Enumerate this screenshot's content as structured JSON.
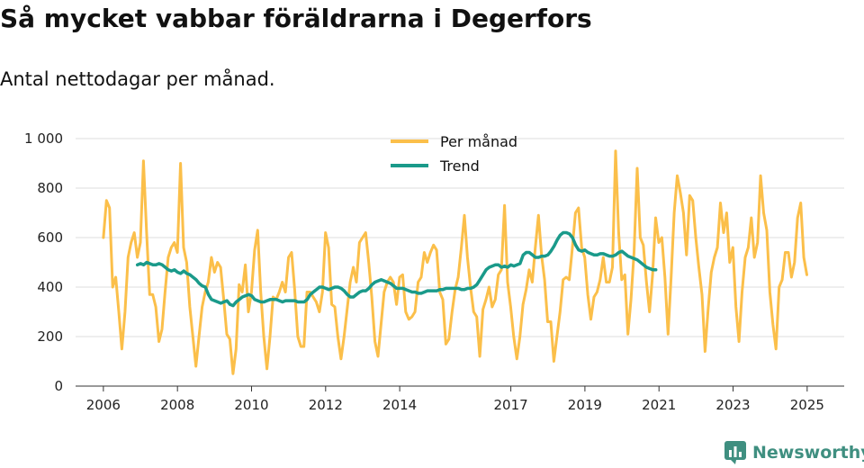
{
  "chart_data": {
    "type": "line",
    "title": "Så mycket vabbar föräldrarna i Degerfors",
    "subtitle": "Antal nettodagar per månad.",
    "xlabel": "",
    "ylabel": "",
    "ylim": [
      0,
      1000
    ],
    "xlim": [
      2005.25,
      2026.0
    ],
    "y_ticks": [
      0,
      200,
      400,
      600,
      800,
      1000
    ],
    "y_tick_labels": [
      "0",
      "200",
      "400",
      "600",
      "800",
      "1 000"
    ],
    "x_ticks": [
      2006,
      2008,
      2010,
      2012,
      2014,
      2017,
      2019,
      2021,
      2023,
      2025
    ],
    "x_tick_labels": [
      "2006",
      "2008",
      "2010",
      "2012",
      "2014",
      "2017",
      "2019",
      "2021",
      "2023",
      "2025"
    ],
    "grid": true,
    "legend_position": "top-center",
    "series": [
      {
        "name": "Per månad",
        "color": "#fbbf4a",
        "start": 2006.0,
        "step": 0.0833,
        "values": [
          600,
          750,
          720,
          400,
          440,
          300,
          150,
          300,
          520,
          580,
          620,
          520,
          580,
          910,
          620,
          370,
          370,
          320,
          180,
          230,
          380,
          520,
          560,
          580,
          540,
          900,
          560,
          500,
          320,
          200,
          80,
          200,
          320,
          380,
          420,
          520,
          460,
          500,
          480,
          350,
          210,
          190,
          50,
          150,
          410,
          380,
          490,
          300,
          380,
          550,
          630,
          380,
          200,
          70,
          200,
          360,
          350,
          380,
          420,
          380,
          520,
          540,
          390,
          200,
          160,
          160,
          380,
          380,
          360,
          340,
          300,
          380,
          620,
          560,
          330,
          320,
          200,
          110,
          200,
          310,
          420,
          480,
          420,
          580,
          600,
          620,
          500,
          360,
          180,
          120,
          250,
          380,
          420,
          440,
          420,
          330,
          440,
          450,
          300,
          270,
          280,
          300,
          420,
          440,
          540,
          500,
          540,
          570,
          550,
          380,
          350,
          170,
          190,
          300,
          390,
          440,
          560,
          690,
          520,
          400,
          300,
          280,
          120,
          310,
          350,
          400,
          320,
          350,
          450,
          470,
          730,
          420,
          320,
          200,
          110,
          200,
          330,
          390,
          470,
          420,
          560,
          690,
          530,
          430,
          260,
          260,
          100,
          200,
          300,
          430,
          440,
          430,
          560,
          700,
          720,
          560,
          520,
          370,
          270,
          360,
          380,
          430,
          520,
          420,
          420,
          480,
          950,
          620,
          430,
          450,
          210,
          350,
          540,
          880,
          600,
          570,
          420,
          300,
          450,
          680,
          580,
          600,
          440,
          210,
          440,
          700,
          850,
          780,
          700,
          530,
          770,
          750,
          600,
          480,
          370,
          140,
          310,
          460,
          520,
          560,
          740,
          620,
          700,
          500,
          560,
          320,
          180,
          380,
          520,
          560,
          680,
          520,
          580,
          850,
          700,
          630,
          380,
          250,
          150,
          400,
          430,
          540,
          540,
          440,
          500,
          680,
          740,
          520,
          450
        ]
      },
      {
        "name": "Trend",
        "color": "#1a9a8a",
        "start": 2006.92,
        "step": 0.0833,
        "values": [
          490,
          495,
          490,
          500,
          495,
          490,
          490,
          495,
          490,
          480,
          470,
          465,
          470,
          460,
          455,
          465,
          455,
          450,
          440,
          430,
          415,
          405,
          400,
          370,
          350,
          345,
          340,
          335,
          340,
          345,
          330,
          325,
          340,
          350,
          360,
          365,
          370,
          365,
          350,
          345,
          340,
          340,
          345,
          350,
          350,
          350,
          345,
          340,
          345,
          345,
          345,
          345,
          340,
          340,
          340,
          350,
          370,
          380,
          390,
          400,
          400,
          395,
          390,
          395,
          400,
          400,
          395,
          385,
          370,
          360,
          360,
          370,
          380,
          385,
          385,
          395,
          410,
          420,
          425,
          430,
          425,
          420,
          415,
          405,
          395,
          395,
          395,
          390,
          385,
          380,
          380,
          375,
          375,
          380,
          385,
          385,
          385,
          385,
          390,
          390,
          395,
          395,
          395,
          395,
          395,
          390,
          390,
          395,
          395,
          400,
          410,
          430,
          450,
          470,
          480,
          485,
          490,
          490,
          480,
          485,
          480,
          490,
          485,
          490,
          495,
          530,
          540,
          540,
          530,
          520,
          520,
          525,
          525,
          530,
          545,
          565,
          590,
          610,
          620,
          620,
          615,
          600,
          570,
          550,
          545,
          550,
          540,
          535,
          530,
          530,
          535,
          535,
          530,
          525,
          525,
          530,
          540,
          545,
          535,
          525,
          520,
          515,
          510,
          500,
          490,
          480,
          475,
          470,
          470
        ]
      }
    ]
  },
  "brand": {
    "name": "Newsworthy",
    "icon": "newsworthy-logo-icon",
    "color": "#3f8f80"
  }
}
